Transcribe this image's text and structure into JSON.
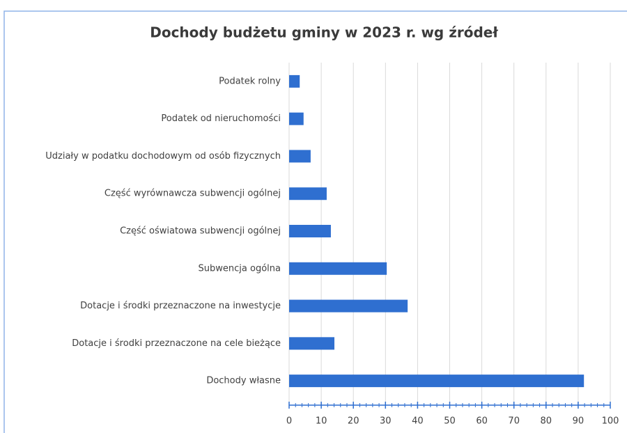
{
  "chart_data": {
    "type": "bar",
    "orientation": "horizontal",
    "title": "Dochody budżetu gminy w 2023 r. wg źródeł",
    "categories": [
      "Podatek rolny",
      "Podatek od nieruchomości",
      "Udziały w podatku dochodowym od osób fizycznych",
      "Część wyrównawcza subwencji ogólnej",
      "Część oświatowa subwencji ogólnej",
      "Subwencja ogólna",
      "Dotacje i środki przeznaczone na inwestycje",
      "Dotacje i środki przeznaczone na cele bieżące",
      "Dochody własne"
    ],
    "values": [
      3.3,
      4.5,
      6.7,
      11.7,
      13,
      30.4,
      36.9,
      14.1,
      91.8
    ],
    "color": "#2f6fd0",
    "xlim": [
      0,
      100
    ],
    "xticks": [
      0,
      10,
      20,
      30,
      40,
      50,
      60,
      70,
      80,
      90,
      100
    ],
    "grid": true
  }
}
